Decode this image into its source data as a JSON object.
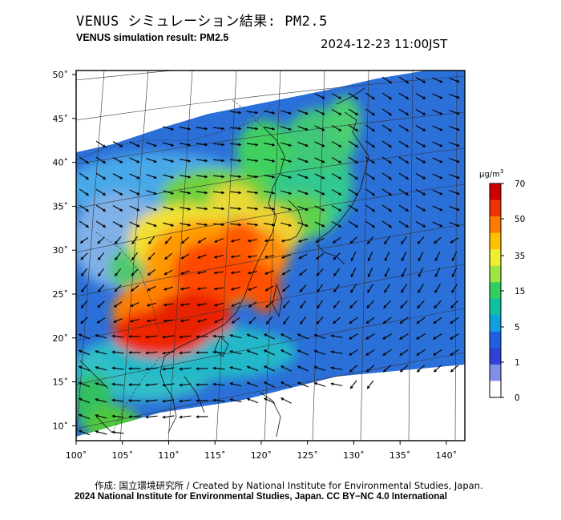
{
  "header": {
    "title_jp": "VENUS シミュレーション結果: PM2.5",
    "title_en": "VENUS simulation result: PM2.5",
    "timestamp": "2024-12-23 11:00JST"
  },
  "map": {
    "lon_ticks": [
      "100˚",
      "105˚",
      "110˚",
      "115˚",
      "120˚",
      "125˚",
      "130˚",
      "135˚",
      "140˚"
    ],
    "lat_ticks": [
      "50˚",
      "45˚",
      "40˚",
      "35˚",
      "30˚",
      "25˚",
      "20˚",
      "15˚",
      "10˚"
    ],
    "lon_range": [
      100,
      142
    ],
    "lat_range": [
      9,
      51
    ]
  },
  "colorbar": {
    "unit_base": "μg/m",
    "unit_exp": "3",
    "ticks": [
      "70",
      "50",
      "35",
      "15",
      "5",
      "1",
      "0"
    ],
    "colors": [
      "#d00000",
      "#ee3300",
      "#ff7a00",
      "#ffc000",
      "#f0ee30",
      "#9ee640",
      "#30d060",
      "#10c0a0",
      "#10a0e0",
      "#2060e0",
      "#3040d8",
      "#8090e8",
      "#ffffff"
    ]
  },
  "footer": {
    "credit": "作成: 国立環境研究所 / Created by National Institute for Environmental Studies, Japan.",
    "copyright": "2024 National Institute for Environmental Studies, Japan. CC BY−NC 4.0 International"
  }
}
